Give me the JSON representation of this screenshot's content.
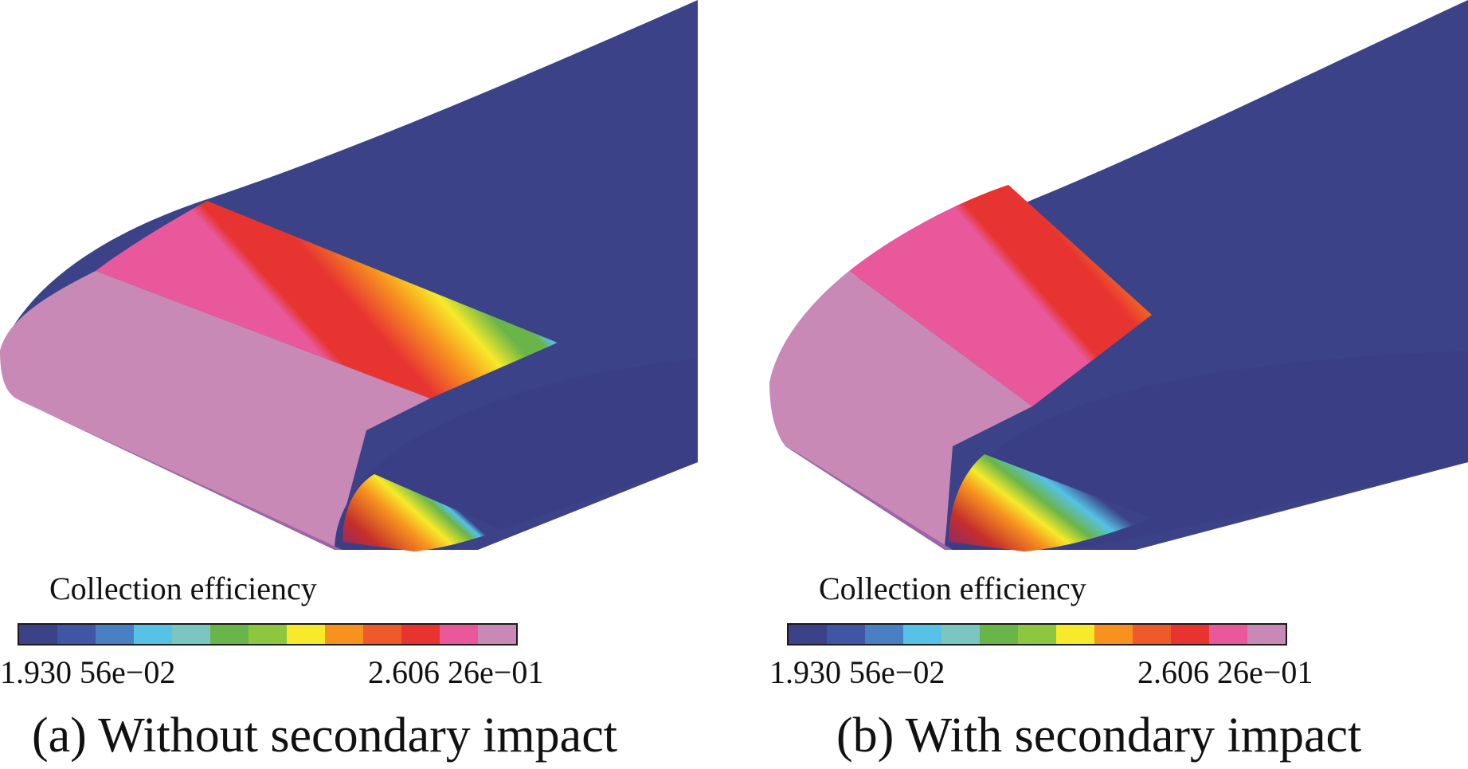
{
  "colors": {
    "base_blue": "#3c4287",
    "cyan": "#55c2e6",
    "green": "#6ab54a",
    "yellow": "#f6ea2a",
    "orange": "#f7921e",
    "red": "#e73431",
    "pink": "#e8589a",
    "lavender": "#c989b6"
  },
  "colorbar_stops": [
    "#3c4287",
    "#3f56a5",
    "#4a7fc3",
    "#55c2e6",
    "#7cc6c2",
    "#6ab54a",
    "#8dc63f",
    "#f6ea2a",
    "#f7921e",
    "#ef5a2a",
    "#e73431",
    "#e8589a",
    "#c989b6"
  ],
  "panels": [
    {
      "id": "a",
      "colorbar_title": "Collection efficiency",
      "min_label": "1.930 56e−02",
      "max_label": "2.606 26e−01",
      "caption": "(a) Without secondary impact"
    },
    {
      "id": "b",
      "colorbar_title": "Collection efficiency",
      "min_label": "1.930 56e−02",
      "max_label": "2.606 26e−01",
      "caption": "(b) With secondary impact"
    }
  ]
}
